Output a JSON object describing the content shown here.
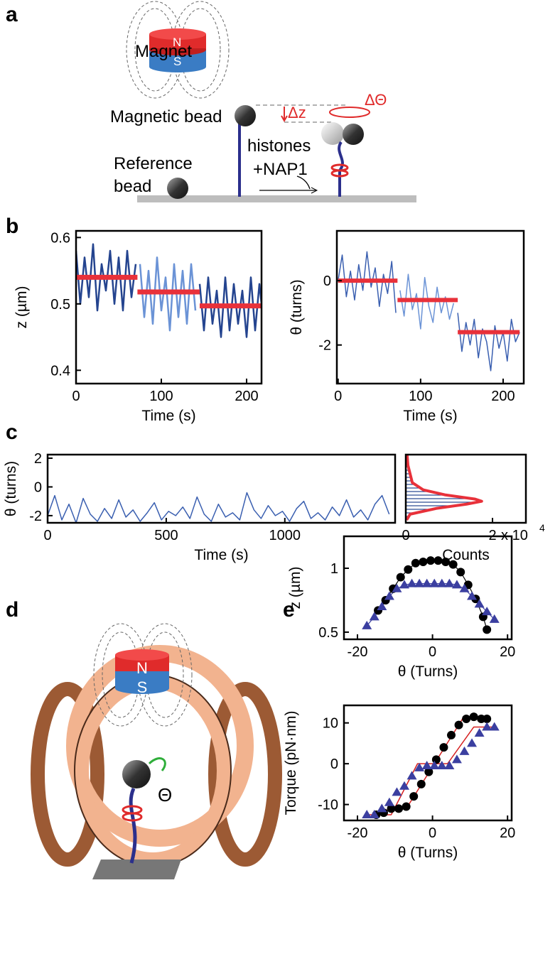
{
  "figure": {
    "panel_labels": [
      "a",
      "b",
      "c",
      "d",
      "e"
    ],
    "panel_a": {
      "magnet": "Magnet",
      "north": "N",
      "south": "S",
      "magnetic_bead": "Magnetic bead",
      "delta_z": "Δz",
      "delta_theta": "ΔΘ",
      "histones": "histones",
      "nap1": "+NAP1",
      "reference_1": "Reference",
      "reference_2": "bead"
    },
    "panel_d": {
      "north": "N",
      "south": "S",
      "theta": "Θ"
    }
  },
  "chart_data": [
    {
      "type": "line",
      "xlabel": "Time (s)",
      "ylabel": "z (µm)",
      "xlim": [
        0,
        217.5
      ],
      "ylim": [
        0.38,
        0.61
      ],
      "xticks": [
        0,
        100,
        200
      ],
      "yticks": [
        0.4,
        0.5,
        0.6
      ],
      "series": [
        {
          "color": "#24448f",
          "style": "line",
          "linewidth": 2.5,
          "x": [
            0,
            5,
            10,
            15,
            20,
            25,
            30,
            35,
            40,
            45,
            50,
            55,
            60,
            65,
            70
          ],
          "values": [
            0.58,
            0.5,
            0.57,
            0.51,
            0.59,
            0.49,
            0.56,
            0.52,
            0.58,
            0.5,
            0.57,
            0.49,
            0.58,
            0.51,
            0.56
          ]
        },
        {
          "color": "#6b93d6",
          "style": "line",
          "linewidth": 2.5,
          "x": [
            75,
            80,
            85,
            90,
            95,
            100,
            105,
            110,
            115,
            120,
            125,
            130,
            135,
            140
          ],
          "values": [
            0.56,
            0.48,
            0.55,
            0.47,
            0.57,
            0.49,
            0.54,
            0.46,
            0.56,
            0.48,
            0.55,
            0.47,
            0.56,
            0.49
          ]
        },
        {
          "color": "#24448f",
          "style": "line",
          "linewidth": 2.5,
          "x": [
            145,
            150,
            155,
            160,
            165,
            170,
            175,
            180,
            185,
            190,
            195,
            200,
            205,
            210,
            215,
            220
          ],
          "values": [
            0.53,
            0.46,
            0.54,
            0.47,
            0.52,
            0.45,
            0.54,
            0.46,
            0.53,
            0.47,
            0.52,
            0.45,
            0.54,
            0.46,
            0.53,
            0.47
          ]
        },
        {
          "color": "#e8313a",
          "style": "line",
          "linewidth": 7,
          "x": [
            0,
            72
          ],
          "values": [
            0.54,
            0.54
          ]
        },
        {
          "color": "#e8313a",
          "style": "line",
          "linewidth": 7,
          "x": [
            72,
            145
          ],
          "values": [
            0.518,
            0.518
          ]
        },
        {
          "color": "#e8313a",
          "style": "line",
          "linewidth": 7,
          "x": [
            145,
            220
          ],
          "values": [
            0.497,
            0.497
          ]
        }
      ]
    },
    {
      "type": "line",
      "xlabel": "Time (s)",
      "ylabel": "θ (turns)",
      "xlim": [
        -1.5,
        225
      ],
      "ylim": [
        -3.2,
        1.55
      ],
      "xticks": [
        0,
        100,
        200
      ],
      "yticks": [
        -2,
        0
      ],
      "series": [
        {
          "color": "#3a5fb0",
          "style": "line",
          "linewidth": 1.5,
          "x": [
            0,
            5,
            10,
            15,
            20,
            25,
            30,
            35,
            40,
            45,
            50,
            55,
            60,
            65,
            70
          ],
          "values": [
            0,
            0.8,
            -0.5,
            0.3,
            -0.6,
            0.5,
            -0.3,
            0.9,
            -0.2,
            0.4,
            -0.8,
            0.2,
            -0.4,
            0.6,
            -1.0
          ]
        },
        {
          "color": "#6b93d6",
          "style": "line",
          "linewidth": 1.5,
          "x": [
            75,
            80,
            85,
            90,
            95,
            100,
            105,
            110,
            115,
            120,
            125,
            130,
            135,
            140
          ],
          "values": [
            -0.3,
            -1.1,
            0.2,
            -0.9,
            -0.4,
            -1.5,
            0.1,
            -0.8,
            -1.3,
            -0.2,
            -1.0,
            -0.5,
            -1.2,
            -0.7
          ]
        },
        {
          "color": "#3a5fb0",
          "style": "line",
          "linewidth": 1.5,
          "x": [
            145,
            150,
            155,
            160,
            165,
            170,
            175,
            180,
            185,
            190,
            195,
            200,
            205,
            210,
            215,
            220
          ],
          "values": [
            -1.0,
            -2.2,
            -1.3,
            -2.0,
            -1.2,
            -2.4,
            -1.5,
            -1.9,
            -2.8,
            -1.4,
            -2.1,
            -1.6,
            -2.5,
            -1.2,
            -1.9,
            -1.6
          ]
        },
        {
          "color": "#e8313a",
          "style": "line",
          "linewidth": 6,
          "x": [
            0,
            72
          ],
          "values": [
            0,
            0
          ]
        },
        {
          "color": "#e8313a",
          "style": "line",
          "linewidth": 6,
          "x": [
            72,
            145
          ],
          "values": [
            -0.6,
            -0.6
          ]
        },
        {
          "color": "#e8313a",
          "style": "line",
          "linewidth": 6,
          "x": [
            145,
            220
          ],
          "values": [
            -1.6,
            -1.6
          ]
        }
      ]
    },
    {
      "type": "line",
      "xlabel": "Time (s)",
      "ylabel": "θ (turns)",
      "xlim": [
        0,
        1465
      ],
      "ylim": [
        -2.5,
        2.25
      ],
      "xticks": [
        0,
        500,
        1000
      ],
      "yticks": [
        -2,
        0,
        2
      ],
      "series": [
        {
          "color": "#3a5fb0",
          "style": "line",
          "linewidth": 1.5,
          "x": [
            0,
            30,
            60,
            90,
            120,
            150,
            180,
            210,
            240,
            270,
            300,
            330,
            360,
            390,
            420,
            450,
            480,
            510,
            540,
            570,
            600,
            630,
            660,
            690,
            720,
            750,
            780,
            810,
            840,
            870,
            900,
            930,
            960,
            990,
            1020,
            1050,
            1080,
            1110,
            1140,
            1170,
            1200,
            1230,
            1260,
            1290,
            1320,
            1350,
            1380,
            1410,
            1440
          ],
          "values": [
            -2,
            -0.6,
            -2.3,
            -1.2,
            -2.5,
            -0.8,
            -1.9,
            -2.4,
            -1.5,
            -2.2,
            -0.9,
            -2.1,
            -1.6,
            -2.4,
            -1.8,
            -1.1,
            -2.3,
            -1.7,
            -2.0,
            -1.4,
            -2.2,
            -0.7,
            -1.9,
            -2.4,
            -1.2,
            -2.1,
            -1.8,
            -2.3,
            -0.4,
            -1.6,
            -2.2,
            -1.3,
            -2.0,
            -1.7,
            -2.4,
            -1.5,
            -1.0,
            -2.2,
            -1.8,
            -2.3,
            -1.4,
            -2.0,
            -0.9,
            -2.1,
            -1.6,
            -2.3,
            -1.2,
            -0.6,
            -1.9
          ]
        }
      ]
    },
    {
      "type": "line",
      "orientation": "horizontal",
      "xlabel": "Counts",
      "xlim": [
        0,
        27700
      ],
      "ylim": [
        -2.5,
        2.25
      ],
      "xticks": [
        0,
        {
          "value": 20000,
          "label": "2"
        }
      ],
      "axis_multiplier": {
        "base": "x 10",
        "exponent": "4"
      },
      "series": [
        {
          "color": "#e8313a",
          "style": "line",
          "fill": "hatch",
          "fill_color": "#24448f",
          "linewidth": 4,
          "y": [
            2.25,
            1.5,
            0.3,
            -0.2,
            -0.55,
            -0.85,
            -1.0,
            -1.2,
            -1.5,
            -1.9,
            -2.3
          ],
          "values": [
            300,
            500,
            1500,
            4000,
            9000,
            16000,
            17500,
            14000,
            7000,
            1000,
            200
          ]
        }
      ]
    },
    {
      "type": "scatter",
      "ylabel": "z (µm)",
      "xlabel": "θ (Turns)",
      "xlim": [
        -23.6,
        21.1
      ],
      "ylim": [
        0.444,
        1.25
      ],
      "xticks": [
        -20,
        0,
        20
      ],
      "yticks": [
        0.5,
        1
      ],
      "series": [
        {
          "color": "#000000",
          "style": "line+markers",
          "marker": "circle",
          "linewidth": 1.2,
          "x": [
            -14.5,
            -12.5,
            -10.5,
            -8.5,
            -6.5,
            -4.5,
            -2.5,
            -0.5,
            1.5,
            3.5,
            5.5,
            7.5,
            9.5,
            11.5,
            13.5,
            14.5
          ],
          "values": [
            0.67,
            0.75,
            0.84,
            0.93,
            0.99,
            1.04,
            1.05,
            1.06,
            1.06,
            1.05,
            1.03,
            0.97,
            0.87,
            0.76,
            0.62,
            0.52
          ]
        },
        {
          "color": "#3b3fa0",
          "style": "line+markers",
          "marker": "triangle",
          "linewidth": 1.2,
          "x": [
            -17.5,
            -15.5,
            -13.5,
            -11.5,
            -9.5,
            -7.5,
            -5.5,
            -3.5,
            -1.5,
            0.5,
            2.5,
            4.5,
            6.5,
            8.5,
            10.5,
            12.5,
            14.5,
            16.5
          ],
          "values": [
            0.55,
            0.62,
            0.7,
            0.78,
            0.84,
            0.87,
            0.88,
            0.88,
            0.88,
            0.88,
            0.88,
            0.88,
            0.87,
            0.84,
            0.78,
            0.72,
            0.66,
            0.6
          ]
        }
      ]
    },
    {
      "type": "scatter",
      "ylabel": "Torque (pN·nm)",
      "xlabel": "θ (Turns)",
      "xlim": [
        -23.6,
        21.1
      ],
      "ylim": [
        -13.9,
        14.3
      ],
      "xticks": [
        -20,
        0,
        20
      ],
      "yticks": [
        -10,
        0,
        10
      ],
      "series": [
        {
          "color": "#000000",
          "style": "markers",
          "marker": "circle",
          "x": [
            -15,
            -13,
            -11,
            -9,
            -7,
            -5,
            -3,
            -1,
            1,
            3,
            5,
            7,
            9,
            11,
            13,
            14.5
          ],
          "values": [
            -12.5,
            -12,
            -11,
            -11,
            -10.5,
            -8,
            -5,
            -2,
            1,
            4,
            7,
            9.5,
            11,
            11.5,
            11,
            11
          ]
        },
        {
          "color": "#3b3fa0",
          "style": "markers",
          "marker": "triangle",
          "x": [
            -17.5,
            -15.5,
            -13.5,
            -11.5,
            -9.5,
            -7.5,
            -5.5,
            -3.5,
            -1.5,
            0.5,
            2.5,
            4.5,
            6.5,
            8.5,
            10.5,
            12.5,
            14.5,
            16.5
          ],
          "values": [
            -12.5,
            -12.5,
            -11,
            -9.5,
            -7,
            -5.5,
            -3,
            -1,
            -0.5,
            -0.5,
            -0.5,
            -0.5,
            1,
            3,
            5,
            7.5,
            9,
            9
          ]
        },
        {
          "color": "#d62020",
          "style": "line",
          "linewidth": 1.5,
          "x": [
            -14,
            -7,
            8,
            14
          ],
          "values": [
            -11.5,
            -11,
            11,
            11
          ]
        },
        {
          "color": "#d62020",
          "style": "line",
          "linewidth": 1.5,
          "x": [
            -17,
            -11,
            -4,
            4,
            11,
            17
          ],
          "values": [
            -12.5,
            -12.5,
            0,
            0,
            9,
            9
          ]
        }
      ]
    }
  ]
}
